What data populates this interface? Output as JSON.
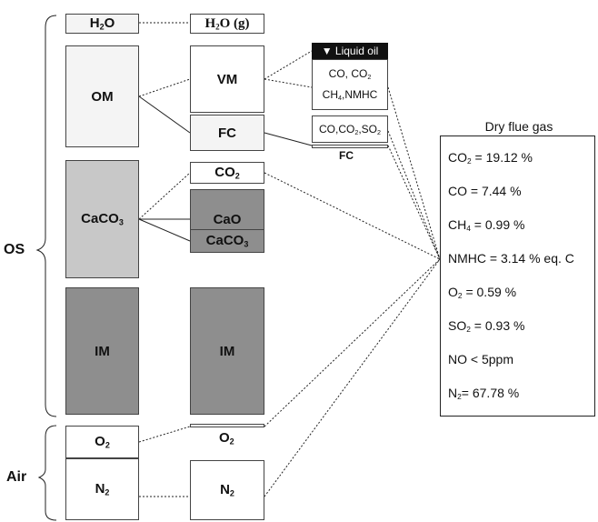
{
  "left_labels": {
    "os": "OS",
    "air": "Air"
  },
  "col1": {
    "h2o": "H2O",
    "om": "OM",
    "caco3": "CaCO3",
    "im": "IM",
    "o2": "O2",
    "n2": "N2"
  },
  "col2": {
    "h2o_g": "H2O (g)",
    "vm": "VM",
    "fc": "FC",
    "co2": "CO2",
    "cao": "CaO",
    "caco3": "CaCO3",
    "im": "IM",
    "o2": "O2",
    "n2": "N2"
  },
  "col3": {
    "liquid_oil": "Liquid oil",
    "vm_gas_line1": "CO, CO2",
    "vm_gas_line2": "CH4,NMHC",
    "fc_gas": "CO,CO2,SO2",
    "fc": "FC"
  },
  "flue_gas": {
    "title": "Dry flue gas",
    "rows": [
      {
        "species": "CO2",
        "value": " = 19.12 %"
      },
      {
        "species": "CO",
        "value": " = 7.44 %"
      },
      {
        "species": "CH4",
        "value": " = 0.99 %"
      },
      {
        "species": "NMHC",
        "value": " = 3.14 % eq. C"
      },
      {
        "species": "O2",
        "value": " = 0.59 %"
      },
      {
        "species": "SO2",
        "value": " = 0.93 %"
      },
      {
        "species": "NO",
        "value": " < 5ppm"
      },
      {
        "species": "N2",
        "value": "= 67.78 %"
      }
    ]
  },
  "colors": {
    "light": "#f4f4f4",
    "mid": "#c8c8c8",
    "dark": "#8e8e8e",
    "oil_bg": "#111111"
  }
}
